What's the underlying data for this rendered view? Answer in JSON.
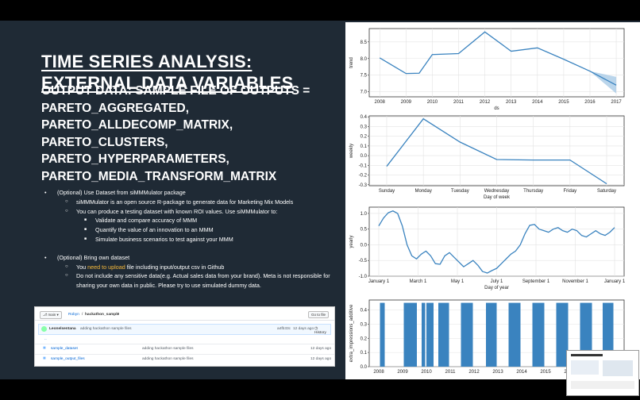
{
  "slide": {
    "title_line1": "TIME SERIES ANALYSIS:",
    "title_line2": "EXTERNAL DATA VARIABLES",
    "subtitle": "OUTPUT DATA: SAMPLE FILE OF OUTPUTS = PARETO_AGGREGATED, PARETO_ALLDECOMP_MATRIX, PARETO_CLUSTERS, PARETO_HYPERPARAMETERS, PARETO_MEDIA_TRANSFORM_MATRIX",
    "bullets": {
      "item1": "(Optional) Use Dataset from siMMMulator package",
      "item1_sub1": "siMMMulator is an open source R-package to generate data for Marketing Mix Models",
      "item1_sub2": "You can produce a testing dataset with known ROI values. Use siMMMulator to:",
      "item1_sub2_a": "Validate and compare accuracy of MMM",
      "item1_sub2_b": "Quantify the value of an innovation to an MMM",
      "item1_sub2_c": "Simulate business scenarios to test against your MMM",
      "item2": "(Optional) Bring own dataset",
      "item2_sub1_pre": "You",
      "item2_sub1_link": "need to upload",
      "item2_sub1_post": "file including input/output csv in Github",
      "item2_sub2": "Do not include any sensitive data(e.g. Actual sales data from your brand). Meta is not responsible for sharing your own data in public. Please try to use simulated dummy data."
    }
  },
  "github": {
    "branch": "main",
    "path_repo": "Robyn",
    "path_folder": "hackathon_sample",
    "go_to_file": "Go to file",
    "commit_user": "Leonelsentana",
    "commit_msg": "adding hackathon sample files",
    "commit_hash": "a4fb33c",
    "commit_time": "12 days ago",
    "history": "History",
    "parent": "..",
    "rows": [
      {
        "name": "sample_dataset",
        "msg": "adding hackathon sample files",
        "time": "12 days ago"
      },
      {
        "name": "sample_output_files",
        "msg": "adding hackathon sample files",
        "time": "12 days ago"
      }
    ]
  },
  "chart_data": [
    {
      "type": "line",
      "ylabel": "trend",
      "xlabel": "ds",
      "x": [
        2008,
        2009,
        2009.5,
        2010,
        2011,
        2012,
        2013,
        2014,
        2015,
        2016,
        2017
      ],
      "values": [
        8.02,
        7.55,
        7.56,
        8.12,
        8.15,
        8.8,
        8.22,
        8.32,
        7.98,
        7.62,
        7.2
      ],
      "yticks": [
        7.0,
        7.5,
        8.0,
        8.5
      ],
      "xticks": [
        "2008",
        "2009",
        "2010",
        "2011",
        "2012",
        "2013",
        "2014",
        "2015",
        "2016",
        "2017"
      ],
      "ylim": [
        6.85,
        8.9
      ],
      "uncertainty_from": 2016
    },
    {
      "type": "line",
      "ylabel": "weekly",
      "xlabel": "Day of week",
      "categories": [
        "Sunday",
        "Monday",
        "Tuesday",
        "Wednesday",
        "Thursday",
        "Friday",
        "Saturday"
      ],
      "values": [
        -0.11,
        0.38,
        0.14,
        -0.04,
        -0.045,
        -0.045,
        -0.29
      ],
      "yticks": [
        -0.3,
        -0.2,
        -0.1,
        0.0,
        0.1,
        0.2,
        0.3,
        0.4
      ],
      "ylim": [
        -0.31,
        0.41
      ]
    },
    {
      "type": "line",
      "ylabel": "yearly",
      "xlabel": "Day of year",
      "xticks": [
        "January 1",
        "March 1",
        "May 1",
        "July 1",
        "September 1",
        "November 1",
        "January 1"
      ],
      "x": [
        0,
        0.02,
        0.04,
        0.06,
        0.08,
        0.1,
        0.12,
        0.14,
        0.16,
        0.18,
        0.2,
        0.22,
        0.24,
        0.26,
        0.28,
        0.3,
        0.32,
        0.34,
        0.36,
        0.38,
        0.4,
        0.42,
        0.44,
        0.46,
        0.48,
        0.5,
        0.52,
        0.54,
        0.56,
        0.58,
        0.6,
        0.62,
        0.64,
        0.66,
        0.68,
        0.7,
        0.72,
        0.74,
        0.76,
        0.78,
        0.8,
        0.82,
        0.84,
        0.86,
        0.88,
        0.9,
        0.92,
        0.94,
        0.96,
        0.98,
        1.0
      ],
      "values": [
        0.6,
        0.85,
        1.02,
        1.08,
        1.0,
        0.6,
        0.0,
        -0.35,
        -0.45,
        -0.3,
        -0.2,
        -0.35,
        -0.6,
        -0.62,
        -0.35,
        -0.25,
        -0.4,
        -0.55,
        -0.7,
        -0.6,
        -0.5,
        -0.65,
        -0.85,
        -0.9,
        -0.82,
        -0.75,
        -0.6,
        -0.45,
        -0.3,
        -0.2,
        0.0,
        0.35,
        0.62,
        0.65,
        0.5,
        0.45,
        0.4,
        0.5,
        0.55,
        0.45,
        0.4,
        0.5,
        0.45,
        0.3,
        0.25,
        0.35,
        0.45,
        0.35,
        0.3,
        0.4,
        0.55
      ],
      "yticks": [
        -1.0,
        -0.5,
        0.0,
        0.5,
        1.0
      ],
      "ylim": [
        -1.0,
        1.2
      ]
    },
    {
      "type": "bar",
      "ylabel": "extra_impressions_additive",
      "xticks": [
        "2008",
        "2009",
        "2010",
        "2011",
        "2012",
        "2013",
        "2014",
        "2015",
        "2016",
        "2017"
      ],
      "yticks": [
        0.0,
        0.1,
        0.2,
        0.3,
        0.4
      ],
      "ylim": [
        0,
        0.47
      ],
      "value": 0.45,
      "periods": [
        [
          2008.05,
          2008.25
        ],
        [
          2009.05,
          2009.6
        ],
        [
          2009.8,
          2009.95
        ],
        [
          2010.0,
          2010.3
        ],
        [
          2010.5,
          2010.95
        ],
        [
          2011.45,
          2011.95
        ],
        [
          2012.5,
          2012.95
        ],
        [
          2013.45,
          2013.95
        ],
        [
          2014.45,
          2014.95
        ],
        [
          2015.45,
          2015.95
        ],
        [
          2016.45,
          2016.95
        ],
        [
          2017.4,
          2017.85
        ]
      ]
    }
  ],
  "colors": {
    "line": "#3a83bf",
    "band": "#a9cbe6",
    "slide_bg": "#1f2a35",
    "link": "#f6b93b"
  },
  "thumbnail": {
    "title": "Meta Robyn Hackathon"
  }
}
